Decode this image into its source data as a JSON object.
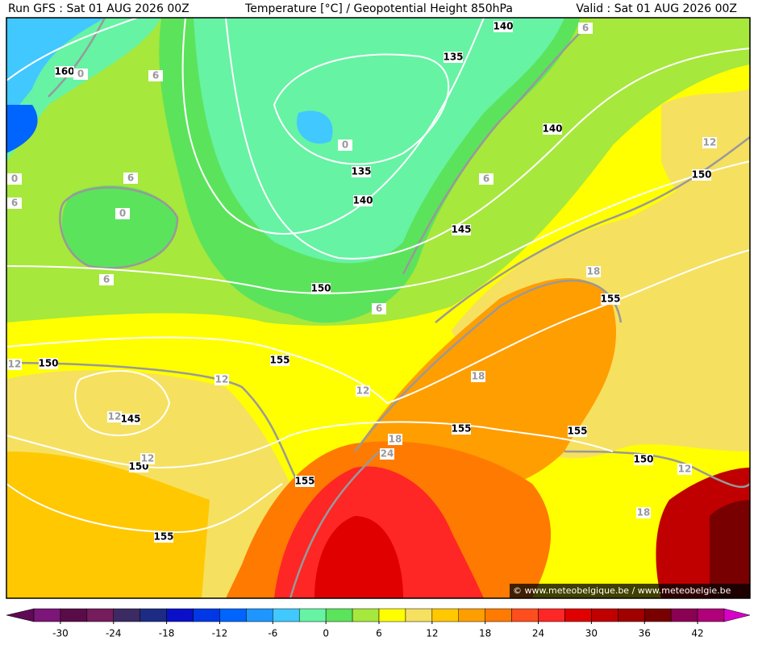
{
  "header": {
    "run": "Run GFS : Sat 01 AUG 2026 00Z",
    "title": "Temperature [°C] / Geopotential Height 850hPa",
    "valid": "Valid : Sat 01 AUG 2026 00Z"
  },
  "map": {
    "height_labels": [
      "140",
      "135",
      "160",
      "140",
      "135",
      "150",
      "140",
      "145",
      "150",
      "155",
      "150",
      "155",
      "145",
      "155",
      "155",
      "150",
      "150",
      "155",
      "155"
    ],
    "temperature_labels": [
      "6",
      "0",
      "6",
      "12",
      "0",
      "6",
      "0",
      "6",
      "0",
      "6",
      "6",
      "18",
      "6",
      "12",
      "12",
      "18",
      "12",
      "12",
      "18",
      "12",
      "24",
      "12",
      "18"
    ],
    "credit": "© www.meteobelgique.be / www.meteobelgie.be"
  },
  "colorbar": {
    "ticks": [
      -30,
      -24,
      -18,
      -12,
      -6,
      0,
      6,
      12,
      18,
      24,
      30,
      36,
      42
    ],
    "range": [
      -33,
      45
    ],
    "colors": [
      "#5e0a55",
      "#7c1678",
      "#5a0c48",
      "#741c5c",
      "#3c2a62",
      "#1c2c84",
      "#0a10c8",
      "#0038e6",
      "#0064ff",
      "#1e96ff",
      "#40c8ff",
      "#66f3a4",
      "#5ce35c",
      "#a6e83c",
      "#ffff00",
      "#f6e060",
      "#ffc800",
      "#ff9e00",
      "#ff7a00",
      "#ff4e1e",
      "#ff2626",
      "#e00000",
      "#c00000",
      "#a00000",
      "#780000",
      "#8a0052",
      "#b0007a",
      "#d800c8"
    ]
  }
}
